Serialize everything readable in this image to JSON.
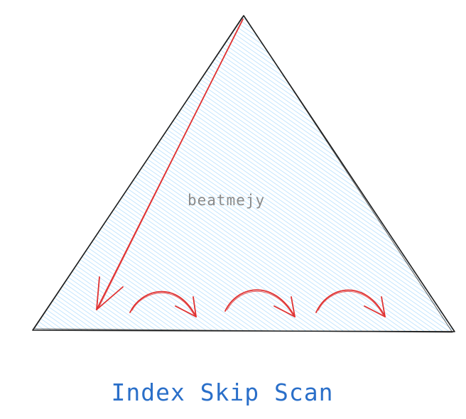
{
  "diagram": {
    "watermark": "beatmejy",
    "caption": "Index Skip Scan",
    "colors": {
      "triangle_stroke": "#1e1e1e",
      "hatch": "#a5d8ff",
      "arrow": "#e03131",
      "caption": "#2a6fc9",
      "watermark": "#8a8a8a"
    }
  }
}
